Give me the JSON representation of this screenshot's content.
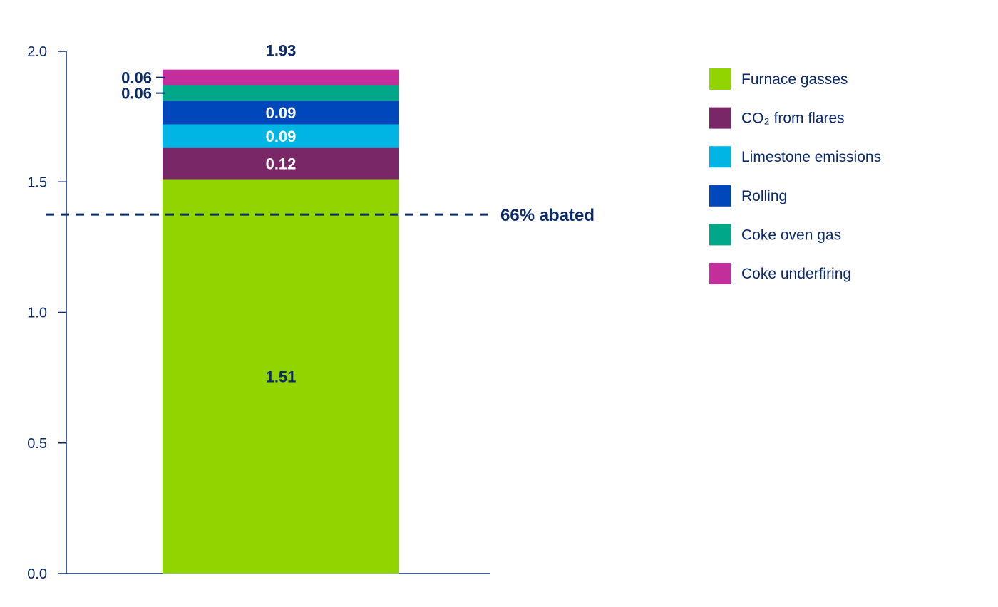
{
  "chart_data": {
    "type": "bar",
    "stacked": true,
    "title": "",
    "xlabel": "",
    "ylabel": "",
    "ylim": [
      0,
      2.0
    ],
    "yticks": [
      "0.0",
      "0.5",
      "1.0",
      "1.5",
      "2.0"
    ],
    "categories": [
      ""
    ],
    "total": 1.93,
    "total_label": "1.93",
    "series": [
      {
        "name": "Furnace gasses",
        "values": [
          1.51
        ],
        "label": "1.51",
        "color": "#92d400"
      },
      {
        "name": "CO₂ from flares",
        "values": [
          0.12
        ],
        "label": "0.12",
        "color": "#7a2768"
      },
      {
        "name": "Limestone emissions",
        "values": [
          0.09
        ],
        "label": "0.09",
        "color": "#00b4e3"
      },
      {
        "name": "Rolling",
        "values": [
          0.09
        ],
        "label": "0.09",
        "color": "#0047bb"
      },
      {
        "name": "Coke oven gas",
        "values": [
          0.06
        ],
        "label": "0.06",
        "color": "#00a88a"
      },
      {
        "name": "Coke underfiring",
        "values": [
          0.06
        ],
        "label": "0.06",
        "color": "#c42d9c"
      }
    ],
    "reference_line": {
      "value": 1.375,
      "label": "66% abated",
      "style": "dashed"
    },
    "legend_position": "right",
    "grid": false,
    "axis_color": "#0b2a6b"
  }
}
